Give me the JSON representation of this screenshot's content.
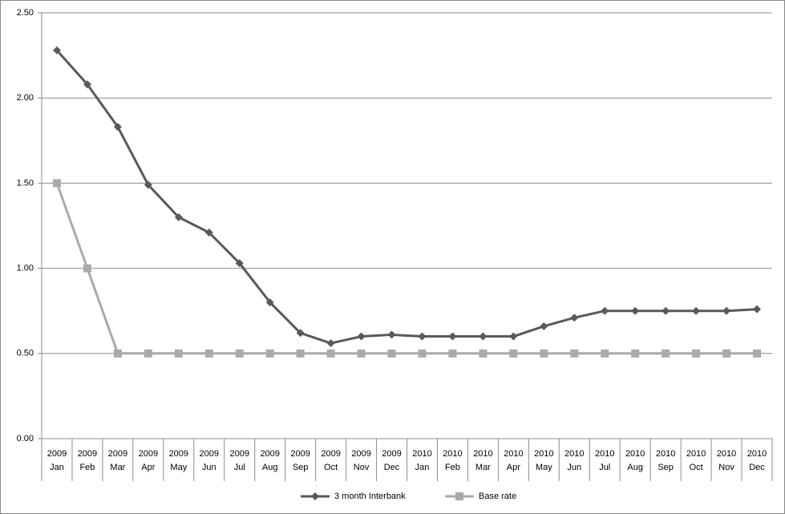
{
  "chart_data": {
    "type": "line",
    "categories": [
      [
        "2009",
        "Jan"
      ],
      [
        "2009",
        "Feb"
      ],
      [
        "2009",
        "Mar"
      ],
      [
        "2009",
        "Apr"
      ],
      [
        "2009",
        "May"
      ],
      [
        "2009",
        "Jun"
      ],
      [
        "2009",
        "Jul"
      ],
      [
        "2009",
        "Aug"
      ],
      [
        "2009",
        "Sep"
      ],
      [
        "2009",
        "Oct"
      ],
      [
        "2009",
        "Nov"
      ],
      [
        "2009",
        "Dec"
      ],
      [
        "2010",
        "Jan"
      ],
      [
        "2010",
        "Feb"
      ],
      [
        "2010",
        "Mar"
      ],
      [
        "2010",
        "Apr"
      ],
      [
        "2010",
        "May"
      ],
      [
        "2010",
        "Jun"
      ],
      [
        "2010",
        "Jul"
      ],
      [
        "2010",
        "Aug"
      ],
      [
        "2010",
        "Sep"
      ],
      [
        "2010",
        "Oct"
      ],
      [
        "2010",
        "Nov"
      ],
      [
        "2010",
        "Dec"
      ]
    ],
    "series": [
      {
        "name": "3 month Interbank",
        "color": "#595959",
        "marker": "diamond",
        "values": [
          2.28,
          2.08,
          1.83,
          1.49,
          1.3,
          1.21,
          1.03,
          0.8,
          0.62,
          0.56,
          0.6,
          0.61,
          0.6,
          0.6,
          0.6,
          0.6,
          0.66,
          0.71,
          0.75,
          0.75,
          0.75,
          0.75,
          0.75,
          0.76
        ]
      },
      {
        "name": "Base rate",
        "color": "#aaaaaa",
        "marker": "square",
        "values": [
          1.5,
          1.0,
          0.5,
          0.5,
          0.5,
          0.5,
          0.5,
          0.5,
          0.5,
          0.5,
          0.5,
          0.5,
          0.5,
          0.5,
          0.5,
          0.5,
          0.5,
          0.5,
          0.5,
          0.5,
          0.5,
          0.5,
          0.5,
          0.5
        ]
      }
    ],
    "ylim": [
      0,
      2.5
    ],
    "yticks": [
      {
        "value": 0,
        "label": "0.00"
      },
      {
        "value": 0.5,
        "label": "0.50"
      },
      {
        "value": 1,
        "label": "1.00"
      },
      {
        "value": 1.5,
        "label": "1.50"
      },
      {
        "value": 2,
        "label": "2.00"
      },
      {
        "value": 2.5,
        "label": "2.50"
      }
    ],
    "grid": true,
    "legend": "bottom"
  }
}
